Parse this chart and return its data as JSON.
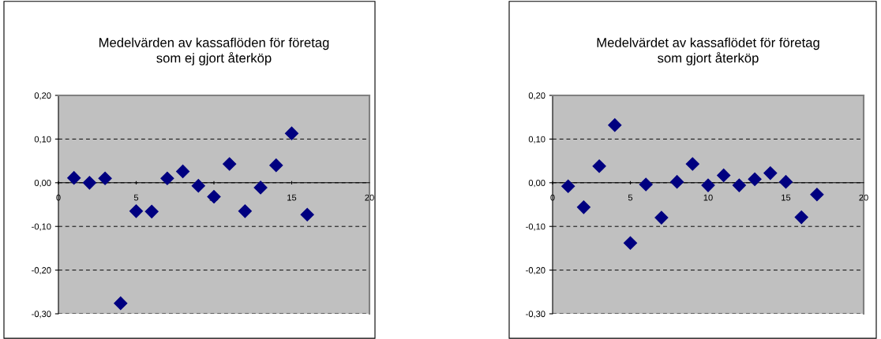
{
  "chart_data": [
    {
      "type": "scatter",
      "title": "Medelvärden av kassaflöden för företag\nsom ej gjort återköp",
      "marker": "diamond",
      "grid": "y",
      "x": [
        1,
        2,
        3,
        4,
        5,
        6,
        7,
        8,
        9,
        10,
        11,
        12,
        13,
        14,
        15,
        16
      ],
      "series": [
        {
          "color": "#000080",
          "values": [
            0.011,
            0.0,
            0.01,
            -0.276,
            -0.065,
            -0.066,
            0.01,
            0.026,
            -0.007,
            -0.032,
            0.043,
            -0.065,
            -0.011,
            0.04,
            0.113,
            -0.073
          ]
        }
      ],
      "xlim": [
        0,
        20
      ],
      "xticks": [
        0,
        5,
        10,
        15,
        20
      ],
      "ylim": [
        -0.3,
        0.2
      ],
      "yticks": [
        {
          "value": -0.3,
          "label": "-0,30"
        },
        {
          "value": -0.2,
          "label": "-0,20"
        },
        {
          "value": -0.1,
          "label": "-0,10"
        },
        {
          "value": 0,
          "label": "0,00"
        },
        {
          "value": 0.1,
          "label": "0,10"
        },
        {
          "value": 0.2,
          "label": "0,20"
        }
      ]
    },
    {
      "type": "scatter",
      "title": "Medelvärdet av kassaflödet för företag\nsom gjort återköp",
      "marker": "diamond",
      "grid": "y",
      "x": [
        1,
        2,
        3,
        4,
        5,
        6,
        7,
        8,
        9,
        10,
        11,
        12,
        13,
        14,
        15,
        16,
        17
      ],
      "series": [
        {
          "color": "#000080",
          "values": [
            -0.008,
            -0.056,
            0.038,
            0.132,
            -0.138,
            -0.004,
            -0.08,
            0.002,
            0.043,
            -0.006,
            0.017,
            -0.006,
            0.008,
            0.022,
            0.002,
            -0.079,
            -0.027
          ]
        }
      ],
      "xlim": [
        0,
        20
      ],
      "xticks": [
        0,
        5,
        10,
        15,
        20
      ],
      "ylim": [
        -0.3,
        0.2
      ],
      "yticks": [
        {
          "value": -0.3,
          "label": "-0,30"
        },
        {
          "value": -0.2,
          "label": "-0,20"
        },
        {
          "value": -0.1,
          "label": "-0,10"
        },
        {
          "value": 0,
          "label": "0,00"
        },
        {
          "value": 0.1,
          "label": "0,10"
        },
        {
          "value": 0.2,
          "label": "0,20"
        }
      ]
    }
  ]
}
